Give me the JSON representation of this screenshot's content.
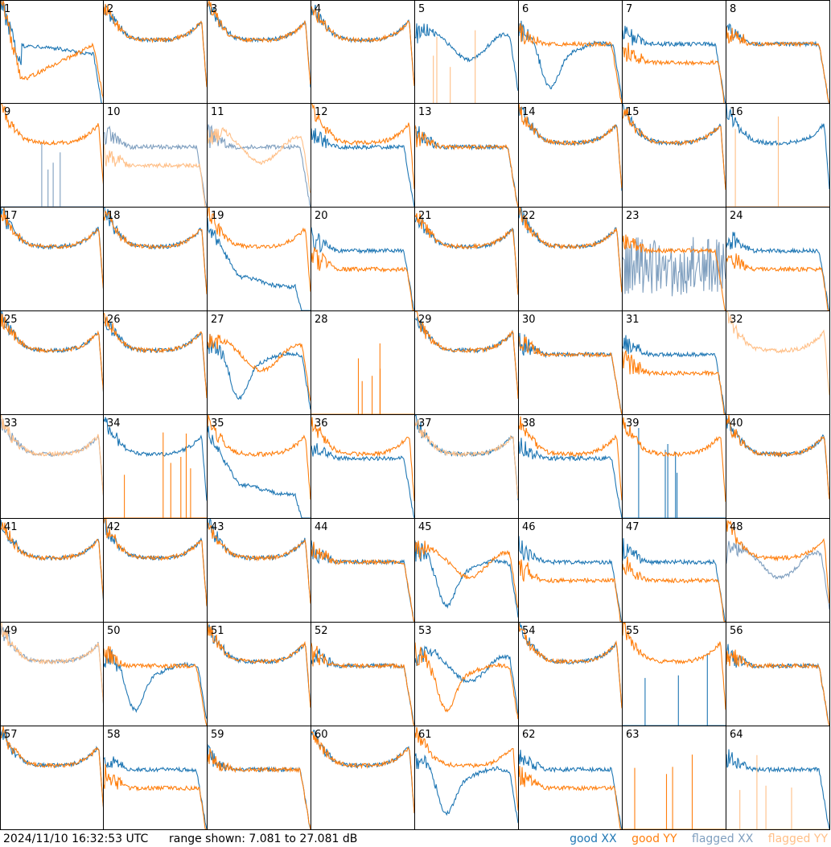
{
  "footer": {
    "timestamp": "2024/11/10 16:32:53 UTC",
    "range_text": "range shown: 7.081 to 27.081 dB"
  },
  "legend": {
    "good_xx": "good XX",
    "good_yy": "good YY",
    "flagged_xx": "flagged XX",
    "flagged_yy": "flagged YY"
  },
  "colors": {
    "good_xx": "#1f77b4",
    "good_yy": "#ff7f0e",
    "flagged_xx": "#7f9fbf",
    "flagged_yy": "#ffbf87"
  },
  "chart_data": {
    "type": "line",
    "grid_layout": "8x8 small multiples",
    "ylim_db": [
      7.081,
      27.081
    ],
    "legend_placement": "bottom-right",
    "series_names": [
      "good XX",
      "good YY",
      "flagged XX",
      "flagged YY"
    ],
    "panels": [
      {
        "id": 1,
        "xx": "good",
        "yy": "good",
        "xx_shape": "drop",
        "yy_shape": "drop2"
      },
      {
        "id": 2,
        "xx": "good",
        "yy": "good",
        "xx_shape": "bathtub",
        "yy_shape": "bathtub"
      },
      {
        "id": 3,
        "xx": "good",
        "yy": "good",
        "xx_shape": "bathtub",
        "yy_shape": "bathtub"
      },
      {
        "id": 4,
        "xx": "good",
        "yy": "good",
        "xx_shape": "bathtub",
        "yy_shape": "bathtub"
      },
      {
        "id": 5,
        "xx": "good",
        "yy": "flagged",
        "xx_shape": "wavy",
        "yy_shape": "dead"
      },
      {
        "id": 6,
        "xx": "good",
        "yy": "good",
        "xx_shape": "deepdip",
        "yy_shape": "flatdrop"
      },
      {
        "id": 7,
        "xx": "good",
        "yy": "good",
        "xx_shape": "flatdrop",
        "yy_shape": "lowflat"
      },
      {
        "id": 8,
        "xx": "good",
        "yy": "good",
        "xx_shape": "flatdrop",
        "yy_shape": "flatdrop"
      },
      {
        "id": 9,
        "xx": "flagged",
        "yy": "good",
        "xx_shape": "dead",
        "yy_shape": "bathtub"
      },
      {
        "id": 10,
        "xx": "flagged",
        "yy": "flagged",
        "xx_shape": "flatdrop",
        "yy_shape": "lowflat"
      },
      {
        "id": 11,
        "xx": "flagged",
        "yy": "flagged",
        "xx_shape": "flatdrop",
        "yy_shape": "wavy"
      },
      {
        "id": 12,
        "xx": "good",
        "yy": "good",
        "xx_shape": "flatdrop",
        "yy_shape": "bathtub"
      },
      {
        "id": 13,
        "xx": "good",
        "yy": "good",
        "xx_shape": "flatdrop",
        "yy_shape": "flatdrop"
      },
      {
        "id": 14,
        "xx": "good",
        "yy": "good",
        "xx_shape": "bathtub",
        "yy_shape": "bathtub"
      },
      {
        "id": 15,
        "xx": "good",
        "yy": "good",
        "xx_shape": "bathtub",
        "yy_shape": "bathtub"
      },
      {
        "id": 16,
        "xx": "good",
        "yy": "flagged",
        "xx_shape": "bathtub",
        "yy_shape": "dead"
      },
      {
        "id": 17,
        "xx": "good",
        "yy": "good",
        "xx_shape": "bathtub",
        "yy_shape": "bathtub"
      },
      {
        "id": 18,
        "xx": "good",
        "yy": "good",
        "xx_shape": "bathtub",
        "yy_shape": "bathtub"
      },
      {
        "id": 19,
        "xx": "good",
        "yy": "good",
        "xx_shape": "lowdrop",
        "yy_shape": "bathtub"
      },
      {
        "id": 20,
        "xx": "good",
        "yy": "good",
        "xx_shape": "flatdrop",
        "yy_shape": "lowflat"
      },
      {
        "id": 21,
        "xx": "good",
        "yy": "good",
        "xx_shape": "bathtub",
        "yy_shape": "bathtub"
      },
      {
        "id": 22,
        "xx": "good",
        "yy": "good",
        "xx_shape": "bathtub",
        "yy_shape": "bathtub"
      },
      {
        "id": 23,
        "xx": "flagged",
        "yy": "good",
        "xx_shape": "noisy",
        "yy_shape": "flatdrop"
      },
      {
        "id": 24,
        "xx": "good",
        "yy": "good",
        "xx_shape": "flatdrop",
        "yy_shape": "lowflat"
      },
      {
        "id": 25,
        "xx": "good",
        "yy": "good",
        "xx_shape": "bathtub",
        "yy_shape": "bathtub"
      },
      {
        "id": 26,
        "xx": "good",
        "yy": "good",
        "xx_shape": "bathtub",
        "yy_shape": "bathtub"
      },
      {
        "id": 27,
        "xx": "good",
        "yy": "good",
        "xx_shape": "deepdip",
        "yy_shape": "wavy"
      },
      {
        "id": 28,
        "xx": "none",
        "yy": "good",
        "xx_shape": "none",
        "yy_shape": "dead"
      },
      {
        "id": 29,
        "xx": "good",
        "yy": "good",
        "xx_shape": "bathtub",
        "yy_shape": "bathtub"
      },
      {
        "id": 30,
        "xx": "good",
        "yy": "good",
        "xx_shape": "flatdrop",
        "yy_shape": "flatdrop"
      },
      {
        "id": 31,
        "xx": "good",
        "yy": "good",
        "xx_shape": "flatdrop",
        "yy_shape": "lowflat"
      },
      {
        "id": 32,
        "xx": "none",
        "yy": "flagged",
        "xx_shape": "none",
        "yy_shape": "bathtub"
      },
      {
        "id": 33,
        "xx": "flagged",
        "yy": "flagged",
        "xx_shape": "bathtub",
        "yy_shape": "bathtub"
      },
      {
        "id": 34,
        "xx": "good",
        "yy": "good",
        "xx_shape": "bathtub",
        "yy_shape": "dead"
      },
      {
        "id": 35,
        "xx": "good",
        "yy": "good",
        "xx_shape": "lowdrop",
        "yy_shape": "bathtub"
      },
      {
        "id": 36,
        "xx": "good",
        "yy": "good",
        "xx_shape": "flatdrop",
        "yy_shape": "bathtub"
      },
      {
        "id": 37,
        "xx": "good",
        "yy": "flagged",
        "xx_shape": "bathtub",
        "yy_shape": "bathtub"
      },
      {
        "id": 38,
        "xx": "good",
        "yy": "good",
        "xx_shape": "flatdrop",
        "yy_shape": "bathtub"
      },
      {
        "id": 39,
        "xx": "good",
        "yy": "good",
        "xx_shape": "dead",
        "yy_shape": "bathtub"
      },
      {
        "id": 40,
        "xx": "good",
        "yy": "good",
        "xx_shape": "bathtub",
        "yy_shape": "bathtub"
      },
      {
        "id": 41,
        "xx": "good",
        "yy": "good",
        "xx_shape": "bathtub",
        "yy_shape": "bathtub"
      },
      {
        "id": 42,
        "xx": "good",
        "yy": "good",
        "xx_shape": "bathtub",
        "yy_shape": "bathtub"
      },
      {
        "id": 43,
        "xx": "good",
        "yy": "good",
        "xx_shape": "bathtub",
        "yy_shape": "bathtub"
      },
      {
        "id": 44,
        "xx": "good",
        "yy": "good",
        "xx_shape": "flatdrop",
        "yy_shape": "flatdrop"
      },
      {
        "id": 45,
        "xx": "good",
        "yy": "good",
        "xx_shape": "deepdip",
        "yy_shape": "wavy"
      },
      {
        "id": 46,
        "xx": "good",
        "yy": "good",
        "xx_shape": "flatdrop",
        "yy_shape": "lowflat"
      },
      {
        "id": 47,
        "xx": "good",
        "yy": "good",
        "xx_shape": "flatdrop",
        "yy_shape": "lowflat"
      },
      {
        "id": 48,
        "xx": "flagged",
        "yy": "good",
        "xx_shape": "wavy",
        "yy_shape": "bathtub"
      },
      {
        "id": 49,
        "xx": "flagged",
        "yy": "flagged",
        "xx_shape": "bathtub",
        "yy_shape": "bathtub"
      },
      {
        "id": 50,
        "xx": "good",
        "yy": "good",
        "xx_shape": "deepdip",
        "yy_shape": "flatdrop"
      },
      {
        "id": 51,
        "xx": "good",
        "yy": "good",
        "xx_shape": "bathtub",
        "yy_shape": "bathtub"
      },
      {
        "id": 52,
        "xx": "good",
        "yy": "good",
        "xx_shape": "flatdrop",
        "yy_shape": "flatdrop"
      },
      {
        "id": 53,
        "xx": "good",
        "yy": "good",
        "xx_shape": "wavy",
        "yy_shape": "deepdip"
      },
      {
        "id": 54,
        "xx": "good",
        "yy": "good",
        "xx_shape": "bathtub",
        "yy_shape": "bathtub"
      },
      {
        "id": 55,
        "xx": "good",
        "yy": "good",
        "xx_shape": "dead",
        "yy_shape": "bathtub"
      },
      {
        "id": 56,
        "xx": "good",
        "yy": "good",
        "xx_shape": "flatdrop",
        "yy_shape": "flatdrop"
      },
      {
        "id": 57,
        "xx": "good",
        "yy": "good",
        "xx_shape": "bathtub",
        "yy_shape": "bathtub"
      },
      {
        "id": 58,
        "xx": "good",
        "yy": "good",
        "xx_shape": "flatdrop",
        "yy_shape": "lowflat"
      },
      {
        "id": 59,
        "xx": "good",
        "yy": "good",
        "xx_shape": "flatdrop",
        "yy_shape": "flatdrop"
      },
      {
        "id": 60,
        "xx": "good",
        "yy": "good",
        "xx_shape": "bathtub",
        "yy_shape": "bathtub"
      },
      {
        "id": 61,
        "xx": "good",
        "yy": "good",
        "xx_shape": "deepdip",
        "yy_shape": "bathtub"
      },
      {
        "id": 62,
        "xx": "good",
        "yy": "good",
        "xx_shape": "flatdrop",
        "yy_shape": "lowflat"
      },
      {
        "id": 63,
        "xx": "none",
        "yy": "good",
        "xx_shape": "none",
        "yy_shape": "dead"
      },
      {
        "id": 64,
        "xx": "good",
        "yy": "flagged",
        "xx_shape": "flatdrop",
        "yy_shape": "dead"
      }
    ]
  }
}
